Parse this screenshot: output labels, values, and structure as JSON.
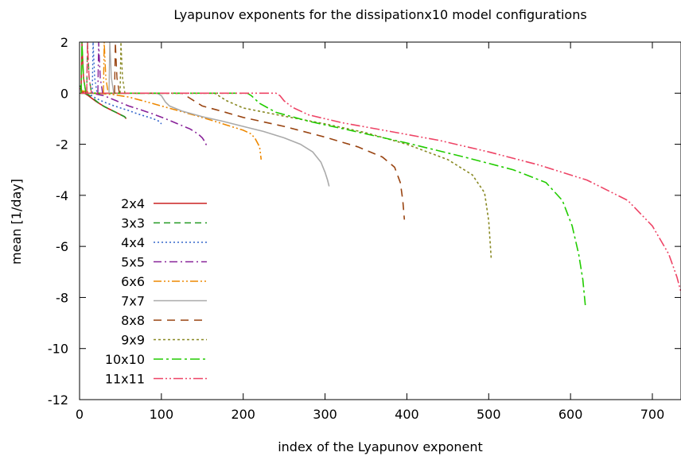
{
  "chart_data": {
    "type": "line",
    "title": "Lyapunov exponents for the dissipationx10 model configurations",
    "xlabel": "index of the Lyapunov exponent",
    "ylabel": "mean [1/day]",
    "xlim": [
      0,
      735
    ],
    "ylim": [
      -12,
      2
    ],
    "xticks": [
      0,
      100,
      200,
      300,
      400,
      500,
      600,
      700
    ],
    "yticks": [
      2,
      0,
      -2,
      -4,
      -6,
      -8,
      -10,
      -12
    ],
    "grid": false,
    "legend_position": "bottom-left",
    "series": [
      {
        "name": "2x4",
        "color": "#cc2222",
        "dash": "",
        "x": [
          1,
          3,
          6,
          10,
          15,
          20,
          25,
          30,
          35,
          40,
          45,
          50,
          55,
          57
        ],
        "y": [
          0.2,
          0.05,
          0.0,
          -0.08,
          -0.2,
          -0.32,
          -0.42,
          -0.52,
          -0.6,
          -0.68,
          -0.76,
          -0.84,
          -0.92,
          -1.0
        ]
      },
      {
        "name": "3x3",
        "color": "#229922",
        "dash": "8,5",
        "x": [
          1,
          3,
          6,
          10,
          15,
          20,
          25,
          30,
          35,
          40,
          45,
          50,
          55,
          57
        ],
        "y": [
          0.3,
          0.05,
          0.0,
          -0.05,
          -0.15,
          -0.3,
          -0.42,
          -0.52,
          -0.6,
          -0.68,
          -0.76,
          -0.84,
          -0.92,
          -1.0
        ]
      },
      {
        "name": "4x4",
        "color": "#3366cc",
        "dash": "2,3",
        "x": [
          1,
          10,
          15,
          20,
          30,
          40,
          50,
          60,
          70,
          80,
          90,
          97,
          100
        ],
        "y": [
          0.15,
          0.0,
          -0.1,
          -0.2,
          -0.35,
          -0.47,
          -0.58,
          -0.68,
          -0.8,
          -0.9,
          -1.0,
          -1.1,
          -1.2
        ]
      },
      {
        "name": "5x5",
        "color": "#882299",
        "dash": "10,4,2,4",
        "x": [
          1,
          15,
          30,
          45,
          60,
          75,
          90,
          105,
          120,
          135,
          145,
          150,
          153,
          156
        ],
        "y": [
          0.1,
          0.0,
          -0.1,
          -0.3,
          -0.5,
          -0.65,
          -0.82,
          -1.0,
          -1.2,
          -1.4,
          -1.6,
          -1.75,
          -1.9,
          -2.1
        ]
      },
      {
        "name": "6x6",
        "color": "#ee8800",
        "dash": "10,3,2,3,2,3",
        "x": [
          1,
          20,
          40,
          60,
          80,
          100,
          120,
          140,
          160,
          180,
          200,
          210,
          215,
          220,
          222
        ],
        "y": [
          0.1,
          0.0,
          -0.05,
          -0.15,
          -0.32,
          -0.5,
          -0.68,
          -0.86,
          -1.05,
          -1.25,
          -1.45,
          -1.6,
          -1.8,
          -2.1,
          -2.6
        ]
      },
      {
        "name": "7x7",
        "color": "#aaaaaa",
        "dash": "",
        "x": [
          1,
          50,
          95,
          100,
          105,
          110,
          125,
          150,
          175,
          200,
          225,
          250,
          270,
          285,
          295,
          300,
          303,
          305
        ],
        "y": [
          0.0,
          0.0,
          0.0,
          -0.1,
          -0.35,
          -0.5,
          -0.7,
          -0.92,
          -1.1,
          -1.3,
          -1.5,
          -1.75,
          -2.0,
          -2.3,
          -2.7,
          -3.1,
          -3.4,
          -3.65
        ]
      },
      {
        "name": "8x8",
        "color": "#994411",
        "dash": "10,7",
        "x": [
          1,
          100,
          125,
          130,
          140,
          150,
          175,
          200,
          250,
          300,
          340,
          370,
          385,
          392,
          395,
          397
        ],
        "y": [
          0.0,
          0.0,
          0.0,
          -0.1,
          -0.3,
          -0.5,
          -0.72,
          -0.95,
          -1.3,
          -1.72,
          -2.1,
          -2.5,
          -2.9,
          -3.5,
          -4.2,
          -4.95
        ]
      },
      {
        "name": "9x9",
        "color": "#888822",
        "dash": "3,3",
        "x": [
          1,
          150,
          165,
          170,
          180,
          200,
          250,
          300,
          350,
          400,
          450,
          480,
          495,
          500,
          503
        ],
        "y": [
          0.0,
          0.0,
          0.0,
          -0.1,
          -0.3,
          -0.58,
          -0.9,
          -1.2,
          -1.55,
          -2.0,
          -2.6,
          -3.2,
          -3.9,
          -5.0,
          -6.45
        ]
      },
      {
        "name": "10x10",
        "color": "#22cc00",
        "dash": "12,4,3,4",
        "x": [
          1,
          200,
          205,
          210,
          220,
          240,
          280,
          330,
          400,
          470,
          530,
          570,
          590,
          602,
          610,
          615,
          618
        ],
        "y": [
          0.0,
          0.0,
          0.0,
          -0.1,
          -0.4,
          -0.75,
          -1.1,
          -1.45,
          -1.95,
          -2.5,
          -3.0,
          -3.5,
          -4.2,
          -5.2,
          -6.3,
          -7.3,
          -8.3
        ]
      },
      {
        "name": "11x11",
        "color": "#ee4466",
        "dash": "12,3,2,3,2,3",
        "x": [
          1,
          200,
          240,
          245,
          250,
          260,
          280,
          320,
          380,
          440,
          500,
          560,
          620,
          670,
          700,
          720,
          730,
          735
        ],
        "y": [
          0.0,
          0.0,
          0.0,
          -0.1,
          -0.3,
          -0.55,
          -0.85,
          -1.15,
          -1.5,
          -1.85,
          -2.3,
          -2.8,
          -3.4,
          -4.2,
          -5.2,
          -6.3,
          -7.2,
          -7.8
        ]
      }
    ]
  }
}
